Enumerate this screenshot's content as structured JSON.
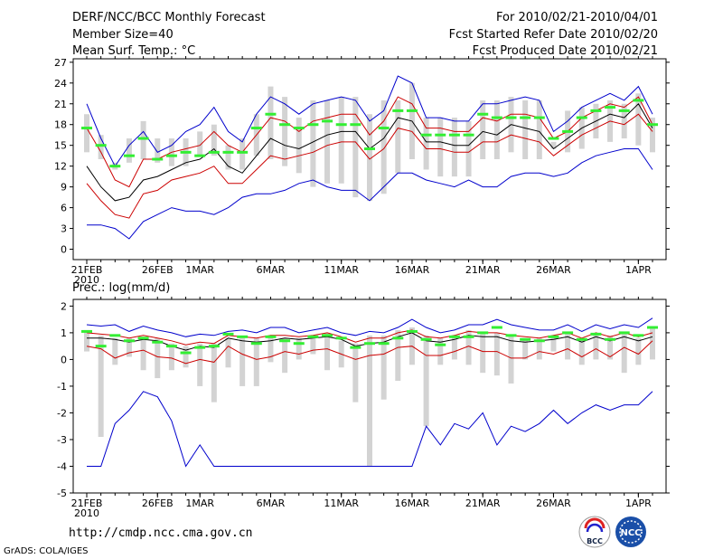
{
  "header": {
    "title": "DERF/NCC/BCC Monthly Forecast",
    "member": "Member Size=40",
    "variable": "Mean Surf. Temp.: °C",
    "for_range": "For 2010/02/21-2010/04/01",
    "fcst_started": "Fcst Started Refer Date 2010/02/20",
    "fcst_produced": "Fcst Produced Date 2010/02/21"
  },
  "footer": {
    "url": "http://cmdp.ncc.cma.gov.cn",
    "grads": "GrADS: COLA/IGES",
    "logo1_text": "BCC",
    "logo2_text": "NCC"
  },
  "colors": {
    "envelope": "#0000cc",
    "spread": "#cc0000",
    "mean": "#000000",
    "obs": "#33ee33",
    "bar": "#d3d3d3"
  },
  "chart_data": [
    {
      "type": "line",
      "title": "Mean Surf. Temp.: °C",
      "ylabel": "°C",
      "ylim": [
        -1.5,
        27.5
      ],
      "yticks": [
        0,
        3,
        6,
        9,
        12,
        15,
        18,
        21,
        24,
        27
      ],
      "x_ticks": [
        {
          "day": 0,
          "label": "21FEB"
        },
        {
          "day": 5,
          "label": "26FEB"
        },
        {
          "day": 8,
          "label": "1MAR"
        },
        {
          "day": 13,
          "label": "6MAR"
        },
        {
          "day": 18,
          "label": "11MAR"
        },
        {
          "day": 23,
          "label": "16MAR"
        },
        {
          "day": 28,
          "label": "21MAR"
        },
        {
          "day": 33,
          "label": "26MAR"
        },
        {
          "day": 39,
          "label": "1APR"
        }
      ],
      "x_sublabel": "2010",
      "series": [
        {
          "name": "max",
          "color": "#0000cc",
          "values": [
            21,
            16,
            12,
            15,
            17,
            14,
            15,
            17,
            18,
            20.5,
            17,
            15.5,
            19.5,
            22,
            21,
            19.5,
            21,
            21.5,
            22,
            21.5,
            18.5,
            20,
            25,
            24,
            19,
            19,
            18.5,
            18.5,
            21,
            21,
            21.5,
            22,
            21.5,
            17,
            18.5,
            20.5,
            21.5,
            22.5,
            21.5,
            23.5,
            19.5
          ]
        },
        {
          "name": "upper",
          "color": "#cc0000",
          "values": [
            17.5,
            14,
            10,
            9,
            13,
            13,
            14,
            14.5,
            15,
            17,
            15,
            14,
            16.5,
            19,
            18.5,
            17,
            18.5,
            19,
            19.5,
            19.5,
            16.5,
            18.5,
            22,
            21,
            17.5,
            17.5,
            17,
            17,
            19,
            18.5,
            19.5,
            19.5,
            19,
            16,
            17,
            19,
            20,
            21,
            20.5,
            22,
            18
          ]
        },
        {
          "name": "mean",
          "color": "#000000",
          "values": [
            12,
            9,
            7,
            7.5,
            10,
            10.5,
            11.5,
            12.5,
            13,
            14.5,
            12,
            11,
            13.5,
            16,
            15,
            14.5,
            15.5,
            16.5,
            17,
            17,
            14.5,
            16,
            19,
            18.5,
            15.5,
            15.5,
            15,
            15,
            17,
            16.5,
            18,
            17.5,
            17,
            14.5,
            16,
            17.5,
            18.5,
            19.5,
            19,
            21,
            17.5
          ]
        },
        {
          "name": "lower",
          "color": "#cc0000",
          "values": [
            9.5,
            7,
            5,
            4.5,
            8,
            8.5,
            10,
            10.5,
            11,
            12,
            9.5,
            9.5,
            11.5,
            13.5,
            13,
            13.5,
            14,
            15,
            15.5,
            15.5,
            13,
            14.5,
            17.5,
            17,
            14.5,
            14.5,
            14,
            14,
            15.5,
            15.5,
            16.5,
            16,
            15.5,
            13.5,
            15,
            16.5,
            17.5,
            18.5,
            18,
            19.5,
            17
          ]
        },
        {
          "name": "min",
          "color": "#0000cc",
          "values": [
            3.5,
            3.5,
            3,
            1.5,
            4,
            5,
            6,
            5.5,
            5.5,
            5,
            6,
            7.5,
            8,
            8,
            8.5,
            9.5,
            10,
            9,
            8.5,
            8.5,
            7,
            9,
            11,
            11,
            10,
            9.5,
            9,
            10,
            9,
            9,
            10.5,
            11,
            11,
            10.5,
            11,
            12.5,
            13.5,
            14,
            14.5,
            14.5,
            11.5
          ]
        }
      ],
      "bars": {
        "name": "obs_range",
        "color": "#d3d3d3",
        "low": [
          14,
          13,
          11.5,
          12.5,
          13,
          12.5,
          12,
          12,
          13.5,
          13.5,
          11.5,
          11.5,
          13.5,
          13,
          12,
          11,
          9,
          9.5,
          9.5,
          7.5,
          7,
          8,
          11,
          13,
          11.5,
          10.5,
          10.5,
          10.5,
          13,
          13,
          14,
          13,
          13,
          14.5,
          14,
          14.5,
          16,
          15.5,
          16,
          15,
          14
        ],
        "high": [
          19.5,
          16.5,
          12.5,
          16,
          18.5,
          16,
          16,
          16,
          17,
          18,
          15,
          16,
          19.5,
          23.5,
          22,
          19,
          21.5,
          21.5,
          22,
          22,
          19.5,
          21.5,
          21.5,
          24,
          19,
          19,
          19,
          18.5,
          21.5,
          21.5,
          22,
          21.5,
          21.5,
          15.5,
          20,
          20.5,
          21,
          21.5,
          21,
          22.5,
          19
        ]
      },
      "obs": {
        "name": "observed",
        "color": "#33ee33",
        "values": [
          17.5,
          15,
          12,
          13.5,
          16,
          13,
          13.5,
          14,
          13.5,
          14,
          14,
          14,
          17.5,
          19.5,
          18,
          17.5,
          18,
          18.5,
          18,
          18,
          14.5,
          17.5,
          20,
          20,
          16.5,
          16.5,
          16.5,
          16.5,
          19.5,
          19,
          19,
          19,
          19,
          16,
          17,
          19,
          20,
          20.5,
          20,
          21.5,
          18
        ]
      }
    },
    {
      "type": "line",
      "title": "Prec.: log(mm/d)",
      "ylabel": "log(mm/d)",
      "ylim": [
        -5,
        2.25
      ],
      "yticks": [
        -5,
        -4,
        -3,
        -2,
        -1,
        0,
        1,
        2
      ],
      "x_ticks": [
        {
          "day": 0,
          "label": "21FEB"
        },
        {
          "day": 5,
          "label": "26FEB"
        },
        {
          "day": 8,
          "label": "1MAR"
        },
        {
          "day": 13,
          "label": "6MAR"
        },
        {
          "day": 18,
          "label": "11MAR"
        },
        {
          "day": 23,
          "label": "16MAR"
        },
        {
          "day": 28,
          "label": "21MAR"
        },
        {
          "day": 33,
          "label": "26MAR"
        },
        {
          "day": 39,
          "label": "1APR"
        }
      ],
      "x_sublabel": "2010",
      "series": [
        {
          "name": "max",
          "color": "#0000cc",
          "values": [
            1.3,
            1.25,
            1.3,
            1.05,
            1.25,
            1.1,
            1.0,
            0.85,
            0.95,
            0.9,
            1.05,
            1.1,
            1.0,
            1.2,
            1.2,
            1.0,
            1.1,
            1.2,
            1.0,
            0.9,
            1.05,
            1.0,
            1.2,
            1.5,
            1.2,
            1.0,
            1.1,
            1.3,
            1.3,
            1.5,
            1.3,
            1.2,
            1.1,
            1.1,
            1.3,
            1.05,
            1.3,
            1.15,
            1.3,
            1.2,
            1.55
          ]
        },
        {
          "name": "upper",
          "color": "#cc0000",
          "values": [
            1.0,
            0.95,
            0.9,
            0.8,
            0.9,
            0.8,
            0.7,
            0.55,
            0.65,
            0.6,
            0.9,
            0.85,
            0.8,
            0.9,
            0.9,
            0.85,
            0.9,
            1.0,
            0.85,
            0.65,
            0.8,
            0.8,
            1.0,
            1.1,
            0.85,
            0.8,
            0.9,
            1.05,
            1.0,
            1.0,
            0.9,
            0.85,
            0.8,
            0.9,
            1.0,
            0.8,
            1.0,
            0.85,
            1.0,
            0.85,
            1.0
          ]
        },
        {
          "name": "mean",
          "color": "#000000",
          "values": [
            0.8,
            0.8,
            0.75,
            0.65,
            0.75,
            0.7,
            0.5,
            0.35,
            0.5,
            0.45,
            0.8,
            0.7,
            0.65,
            0.7,
            0.8,
            0.75,
            0.8,
            0.85,
            0.75,
            0.5,
            0.6,
            0.65,
            0.85,
            1.0,
            0.7,
            0.65,
            0.75,
            0.9,
            0.85,
            0.85,
            0.7,
            0.65,
            0.7,
            0.75,
            0.85,
            0.65,
            0.85,
            0.7,
            0.85,
            0.7,
            0.85
          ]
        },
        {
          "name": "lower",
          "color": "#cc0000",
          "values": [
            0.5,
            0.4,
            0.05,
            0.25,
            0.35,
            0.1,
            0.05,
            -0.15,
            0.0,
            -0.1,
            0.5,
            0.2,
            0.0,
            0.1,
            0.3,
            0.2,
            0.35,
            0.4,
            0.2,
            0.0,
            0.15,
            0.2,
            0.45,
            0.5,
            0.15,
            0.15,
            0.3,
            0.5,
            0.3,
            0.3,
            0.05,
            0.05,
            0.3,
            0.2,
            0.4,
            0.1,
            0.4,
            0.1,
            0.45,
            0.2,
            0.7
          ]
        },
        {
          "name": "min",
          "color": "#0000cc",
          "values": [
            -4.0,
            -4.0,
            -2.4,
            -1.9,
            -1.2,
            -1.4,
            -2.3,
            -4.0,
            -3.2,
            -4.0,
            -4.0,
            -4.0,
            -4.0,
            -4.0,
            -4.0,
            -4.0,
            -4.0,
            -4.0,
            -4.0,
            -4.0,
            -4.0,
            -4.0,
            -4.0,
            -4.0,
            -2.5,
            -3.2,
            -2.4,
            -2.6,
            -2.0,
            -3.2,
            -2.5,
            -2.7,
            -2.4,
            -1.9,
            -2.4,
            -2.0,
            -1.7,
            -1.9,
            -1.7,
            -1.7,
            -1.2
          ]
        }
      ],
      "bars": {
        "name": "obs_range",
        "color": "#d3d3d3",
        "low": [
          0.3,
          -2.9,
          -0.2,
          0.1,
          -0.4,
          -0.7,
          -0.4,
          -0.3,
          -1.0,
          -1.6,
          -0.3,
          -1.0,
          -1.0,
          -0.1,
          -0.5,
          0.0,
          0.2,
          -0.4,
          -0.3,
          -1.6,
          -4.0,
          -1.5,
          -0.8,
          -0.2,
          -2.5,
          -0.2,
          0.0,
          -0.2,
          -0.5,
          -0.6,
          -0.9,
          0.0,
          0.0,
          0.3,
          0.0,
          -0.2,
          0.0,
          0.0,
          -0.5,
          -0.2,
          0.0
        ],
        "high": [
          1.1,
          0.9,
          0.8,
          0.8,
          0.8,
          0.8,
          0.6,
          0.5,
          0.6,
          0.6,
          0.8,
          0.8,
          0.8,
          0.9,
          0.8,
          0.8,
          0.8,
          1.0,
          0.7,
          0.6,
          0.9,
          0.9,
          1.1,
          1.2,
          0.9,
          0.8,
          0.9,
          1.1,
          1.0,
          1.0,
          0.9,
          0.8,
          0.8,
          0.9,
          1.0,
          0.8,
          1.0,
          0.9,
          1.0,
          0.8,
          1.2
        ]
      },
      "obs": {
        "name": "observed",
        "color": "#33ee33",
        "values": [
          1.05,
          0.5,
          0.9,
          0.7,
          0.8,
          0.65,
          0.5,
          0.25,
          0.45,
          0.5,
          0.95,
          0.85,
          0.6,
          0.85,
          0.7,
          0.6,
          0.85,
          0.9,
          0.8,
          0.45,
          0.6,
          0.6,
          0.8,
          1.05,
          0.75,
          0.55,
          0.85,
          0.85,
          1.0,
          1.2,
          0.9,
          0.75,
          0.7,
          0.85,
          1.0,
          0.75,
          0.95,
          0.75,
          1.0,
          0.9,
          1.2
        ]
      }
    }
  ]
}
